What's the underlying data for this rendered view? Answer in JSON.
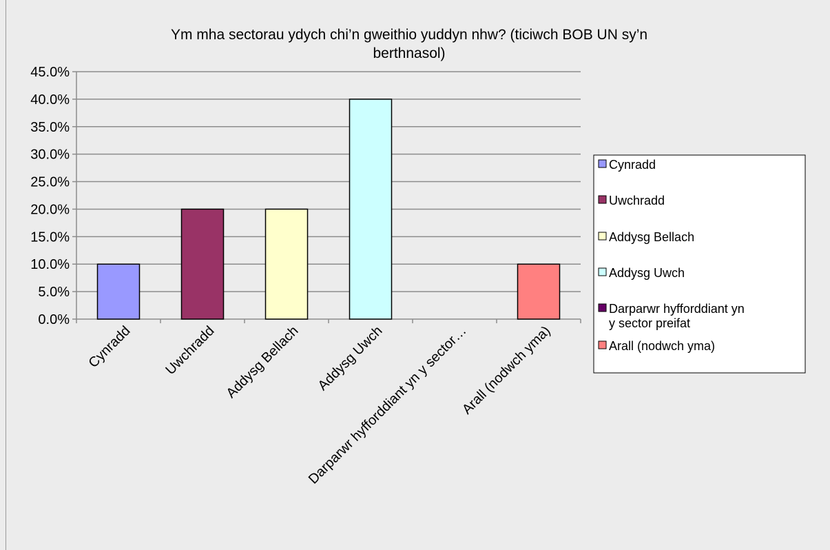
{
  "chart_data": {
    "type": "bar",
    "title_lines": [
      "Ym mha sectorau ydych chi’n gweithio yuddyn nhw? (ticiwch BOB UN sy’n",
      "berthnasol)"
    ],
    "xlabel": "",
    "ylabel": "",
    "categories": [
      "Cynradd",
      "Uwchradd",
      "Addysg Bellach",
      "Addysg Uwch",
      "Darparwr hyfforddiant yn y sector…",
      "Arall (nodwch yma)"
    ],
    "values": [
      10.0,
      20.0,
      20.0,
      40.0,
      0.0,
      10.0
    ],
    "colors": [
      "#9999ff",
      "#993366",
      "#ffffcc",
      "#ccffff",
      "#660066",
      "#ff8080"
    ],
    "ylim": [
      0,
      45
    ],
    "yticks": [
      0,
      5,
      10,
      15,
      20,
      25,
      30,
      35,
      40,
      45
    ],
    "ytick_labels": [
      "0.0%",
      "5.0%",
      "10.0%",
      "15.0%",
      "20.0%",
      "25.0%",
      "30.0%",
      "35.0%",
      "40.0%",
      "45.0%"
    ],
    "grid": true,
    "legend": {
      "placement": "right",
      "entries": [
        {
          "lines": [
            "Cynradd"
          ],
          "color": "#9999ff"
        },
        {
          "lines": [
            "Uwchradd"
          ],
          "color": "#993366"
        },
        {
          "lines": [
            "Addysg Bellach"
          ],
          "color": "#ffffcc"
        },
        {
          "lines": [
            "Addysg Uwch"
          ],
          "color": "#ccffff"
        },
        {
          "lines": [
            "Darparwr hyfforddiant yn",
            "y sector preifat"
          ],
          "color": "#660066"
        },
        {
          "lines": [
            "Arall (nodwch yma)"
          ],
          "color": "#ff8080"
        }
      ]
    }
  }
}
